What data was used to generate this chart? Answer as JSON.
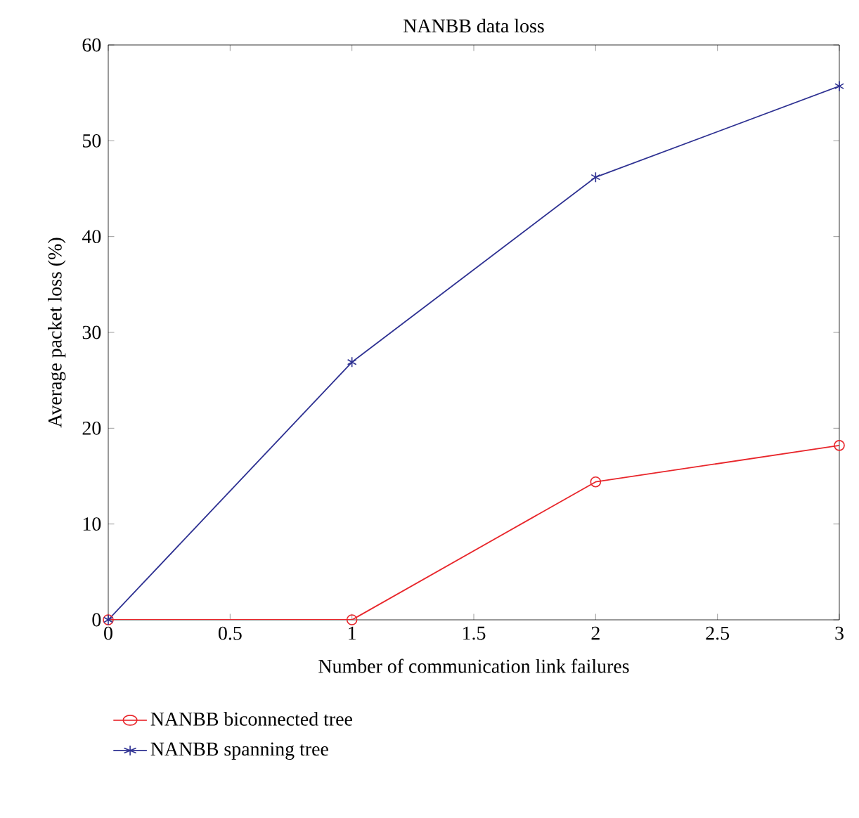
{
  "chart_data": {
    "type": "line",
    "title": "NANBB data loss",
    "xlabel": "Number of communication link failures",
    "ylabel": "Average packet loss (%)",
    "x": [
      0,
      1,
      2,
      3
    ],
    "series": [
      {
        "name": "NANBB biconnected tree",
        "color": "#e8262b",
        "marker": "circle",
        "values": [
          0,
          0,
          14.4,
          18.2
        ]
      },
      {
        "name": "NANBB spanning tree",
        "color": "#2e3192",
        "marker": "cross",
        "values": [
          0,
          26.9,
          46.2,
          55.7
        ]
      }
    ],
    "xlim": [
      0,
      3
    ],
    "ylim": [
      0,
      60
    ],
    "xticks": [
      0,
      0.5,
      1,
      1.5,
      2,
      2.5,
      3
    ],
    "yticks": [
      0,
      10,
      20,
      30,
      40,
      50,
      60
    ],
    "grid": false,
    "legend": "bottom left",
    "line_style": "solid"
  }
}
